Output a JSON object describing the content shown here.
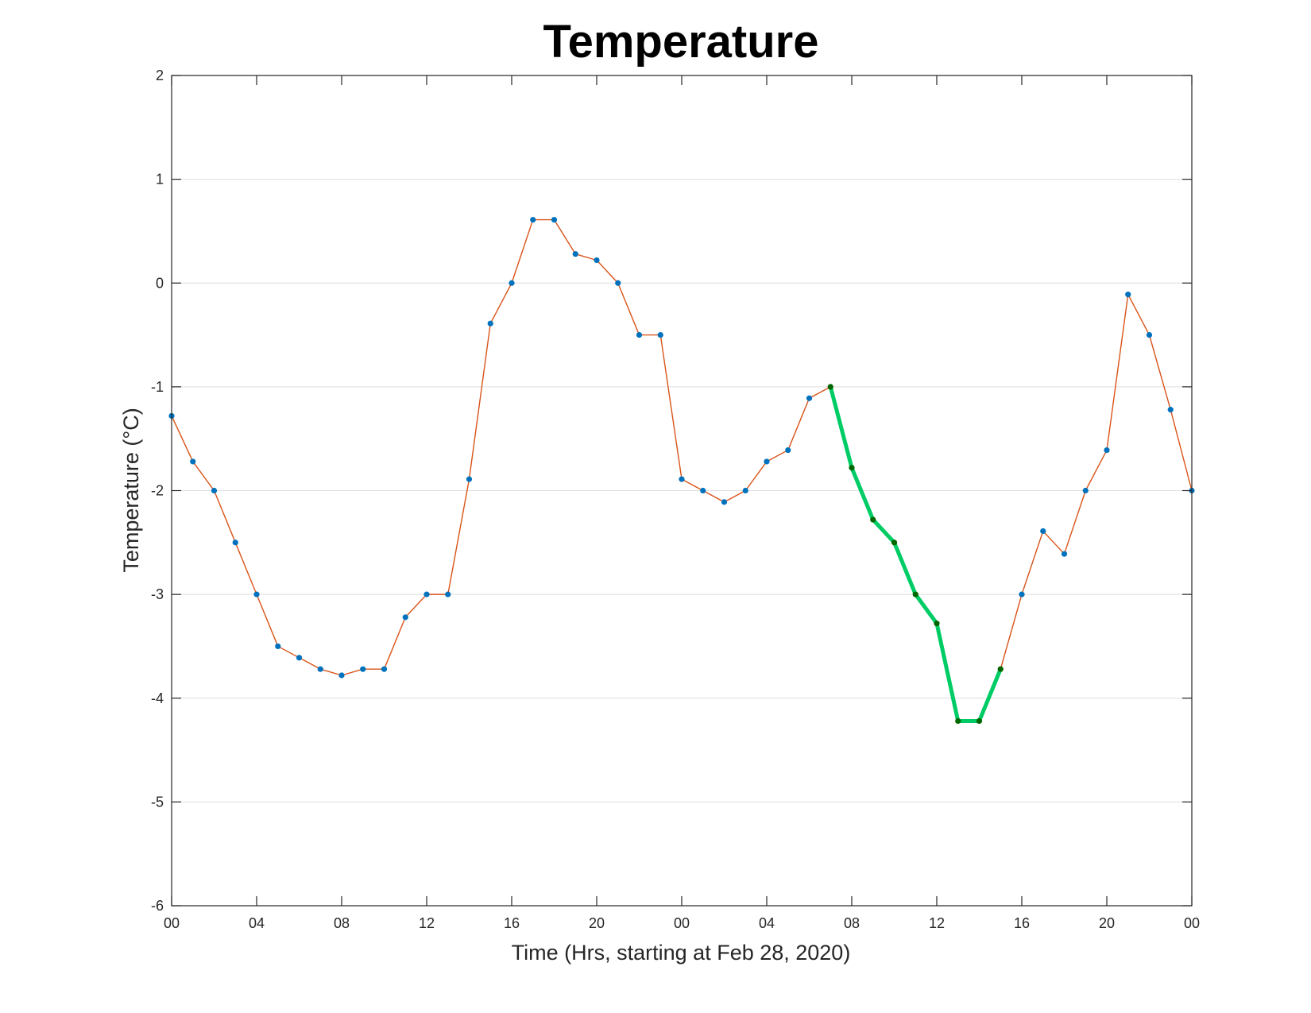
{
  "chart_data": {
    "type": "line",
    "title": "Temperature",
    "xlabel": "Time (Hrs, starting at Feb 28, 2020)",
    "ylabel": "Temperature (°C)",
    "ylim": [
      -6,
      2
    ],
    "xlim": [
      0,
      48
    ],
    "yticks": [
      2,
      1,
      0,
      -1,
      -2,
      -3,
      -4,
      -5,
      -6
    ],
    "ytick_labels": [
      "2",
      "1",
      "0",
      "-1",
      "-2",
      "-3",
      "-4",
      "-5",
      "-6"
    ],
    "xticks": [
      0,
      4,
      8,
      12,
      16,
      20,
      24,
      28,
      32,
      36,
      40,
      44,
      48
    ],
    "xtick_labels": [
      "00",
      "04",
      "08",
      "12",
      "16",
      "20",
      "00",
      "04",
      "08",
      "12",
      "16",
      "20",
      "00"
    ],
    "grid": "y",
    "x": [
      0,
      1,
      2,
      3,
      4,
      5,
      6,
      7,
      8,
      9,
      10,
      11,
      12,
      13,
      14,
      15,
      16,
      17,
      18,
      19,
      20,
      21,
      22,
      23,
      24,
      25,
      26,
      27,
      28,
      29,
      30,
      31,
      32,
      33,
      34,
      35,
      36,
      37,
      38,
      39,
      40,
      41,
      42,
      43,
      44,
      45,
      46,
      47,
      48
    ],
    "series": [
      {
        "values": [
          -1.28,
          -1.72,
          -2,
          -2.5,
          -3,
          -3.5,
          -3.61,
          -3.72,
          -3.78,
          -3.72,
          -3.72,
          -3.22,
          -3,
          -3,
          -1.89,
          -0.39,
          0,
          0.61,
          0.61,
          0.28,
          0.22,
          0,
          -0.5,
          -0.5,
          -1.89,
          -2,
          -2.11,
          -2,
          -1.72,
          -1.61,
          -1.11,
          -1,
          -1.78,
          -2.28,
          -2.5,
          -3,
          -3.28,
          -4.22,
          -4.22,
          -3.72,
          -3,
          -2.39,
          -2.61,
          -2,
          -1.61,
          -0.11,
          -0.5,
          -1.22,
          -2
        ],
        "line_color": "#d95319",
        "marker_color": "#0072bd"
      },
      {
        "x_start": 31,
        "x_end": 39,
        "line_color": "#00cc66",
        "marker_color": "#006600"
      }
    ]
  }
}
